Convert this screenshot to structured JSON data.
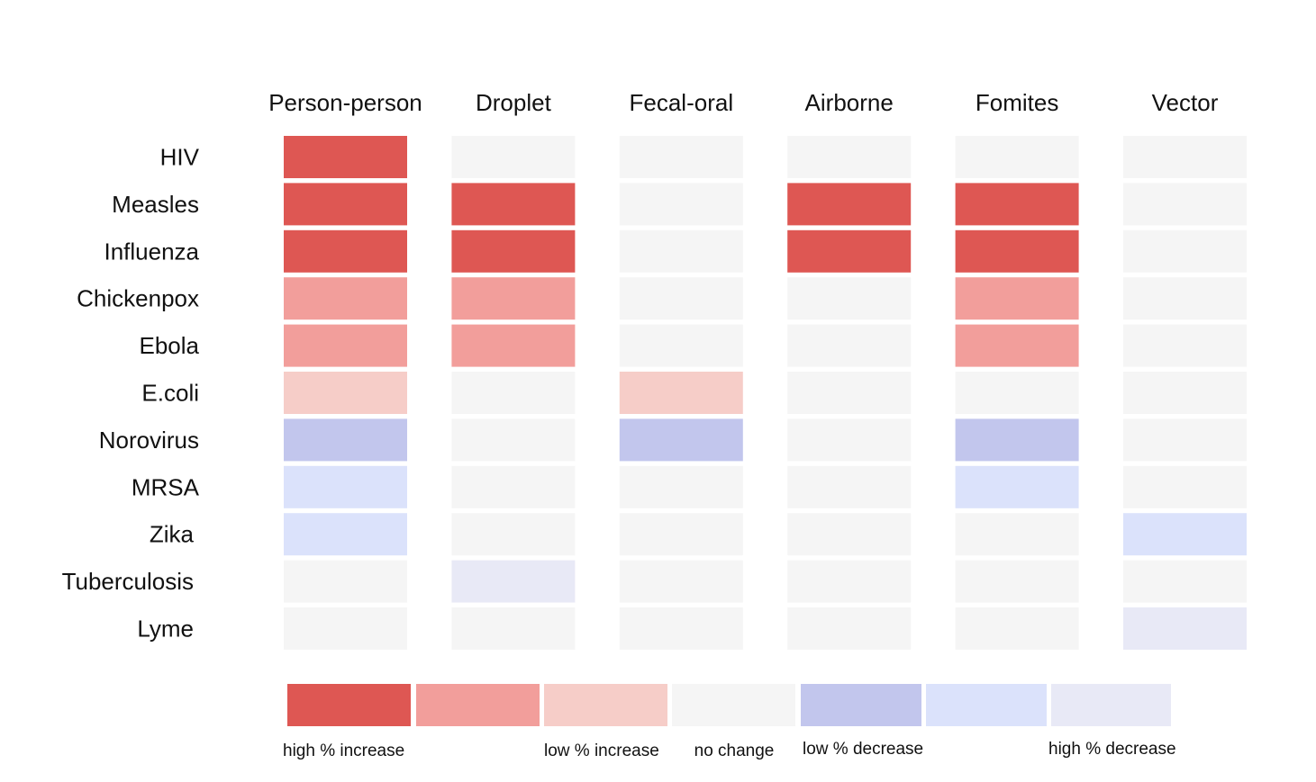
{
  "chart_data": {
    "type": "heatmap",
    "title": "",
    "columns": [
      "Person-person",
      "Droplet",
      "Fecal-oral",
      "Airborne",
      "Fomites",
      "Vector"
    ],
    "rows": [
      "HIV",
      "Measles",
      "Influenza",
      "Chickenpox",
      "Ebola",
      "E.coli",
      "Norovirus",
      "MRSA",
      "Zika",
      "Tuberculosis",
      "Lyme"
    ],
    "scale_note": "cell value is a legend level index: 0 = high % increase, 1 = moderate increase, 2 = low % increase, 3 = no change, 4 = low % decrease, 5 = moderate decrease, 6 = high % decrease",
    "values": [
      [
        0,
        3,
        3,
        3,
        3,
        3
      ],
      [
        0,
        0,
        3,
        0,
        0,
        3
      ],
      [
        0,
        0,
        3,
        0,
        0,
        3
      ],
      [
        1,
        1,
        3,
        3,
        1,
        3
      ],
      [
        1,
        1,
        3,
        3,
        1,
        3
      ],
      [
        2,
        3,
        2,
        3,
        3,
        3
      ],
      [
        4,
        3,
        4,
        3,
        4,
        3
      ],
      [
        5,
        3,
        3,
        3,
        5,
        3
      ],
      [
        5,
        3,
        3,
        3,
        3,
        5
      ],
      [
        3,
        6,
        3,
        3,
        3,
        3
      ],
      [
        3,
        3,
        3,
        3,
        3,
        6
      ]
    ],
    "legend": {
      "levels": [
        {
          "color": "#de5753",
          "label": "high % increase"
        },
        {
          "color": "#f29e9b",
          "label": ""
        },
        {
          "color": "#f6cdc8",
          "label": "low % increase"
        },
        {
          "color": "#f5f5f5",
          "label": "no change"
        },
        {
          "color": "#c2c6ed",
          "label": "low % decrease"
        },
        {
          "color": "#dbe2fb",
          "label": ""
        },
        {
          "color": "#e8e9f6",
          "label": "high % decrease"
        }
      ]
    }
  }
}
